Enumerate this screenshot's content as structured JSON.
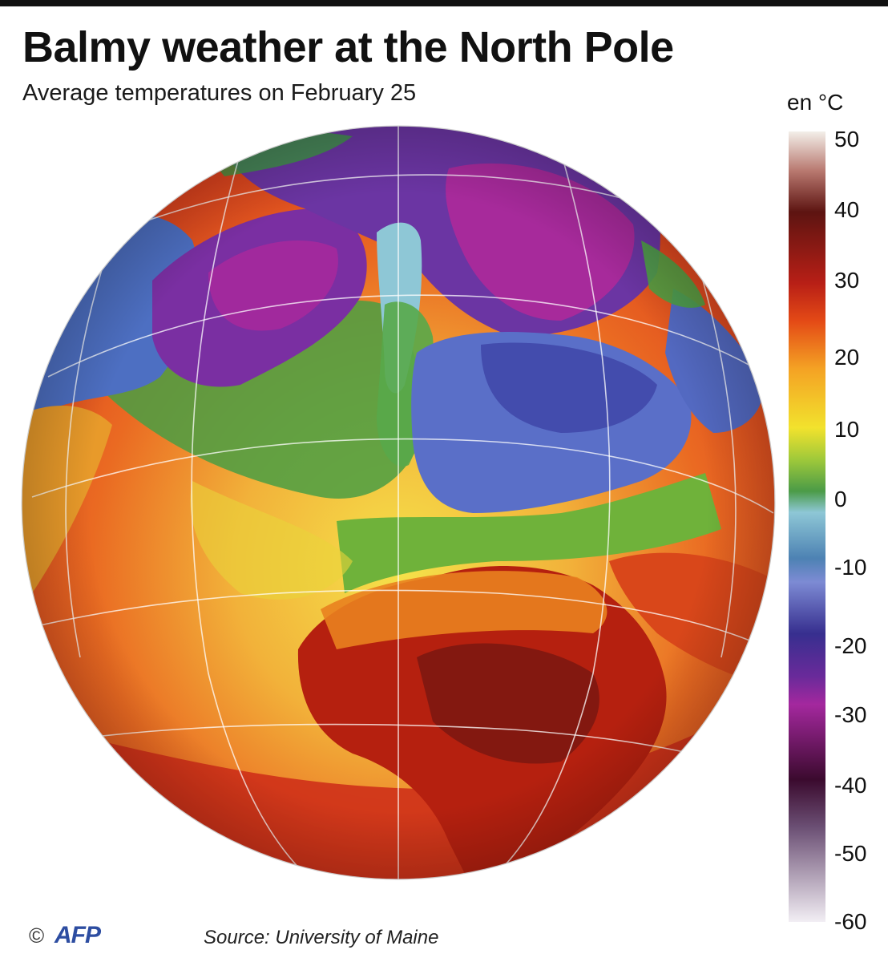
{
  "header": {
    "title": "Balmy weather at the North Pole",
    "subtitle": "Average temperatures on February 25"
  },
  "legend": {
    "unit": "en °C",
    "ticks": [
      "50",
      "40",
      "30",
      "20",
      "10",
      "0",
      "-10",
      "-20",
      "-30",
      "-40",
      "-50",
      "-60"
    ],
    "range": [
      -60,
      50
    ],
    "colors": {
      "hot_max": "#f3efe9",
      "very_hot": "#5d1411",
      "hot": "#b81f16",
      "warm": "#f4a224",
      "mild": "#f2e22d",
      "cool": "#4b9b47",
      "zero": "#8ec7d6",
      "cold": "#4d82b3",
      "very_cold": "#372f8f",
      "frigid": "#a4289e",
      "min": "#f2eef4"
    }
  },
  "map": {
    "projection": "orthographic globe",
    "icon": "globe-icon"
  },
  "footer": {
    "copyright": "©",
    "logo": "AFP",
    "source": "Source: University of Maine"
  }
}
